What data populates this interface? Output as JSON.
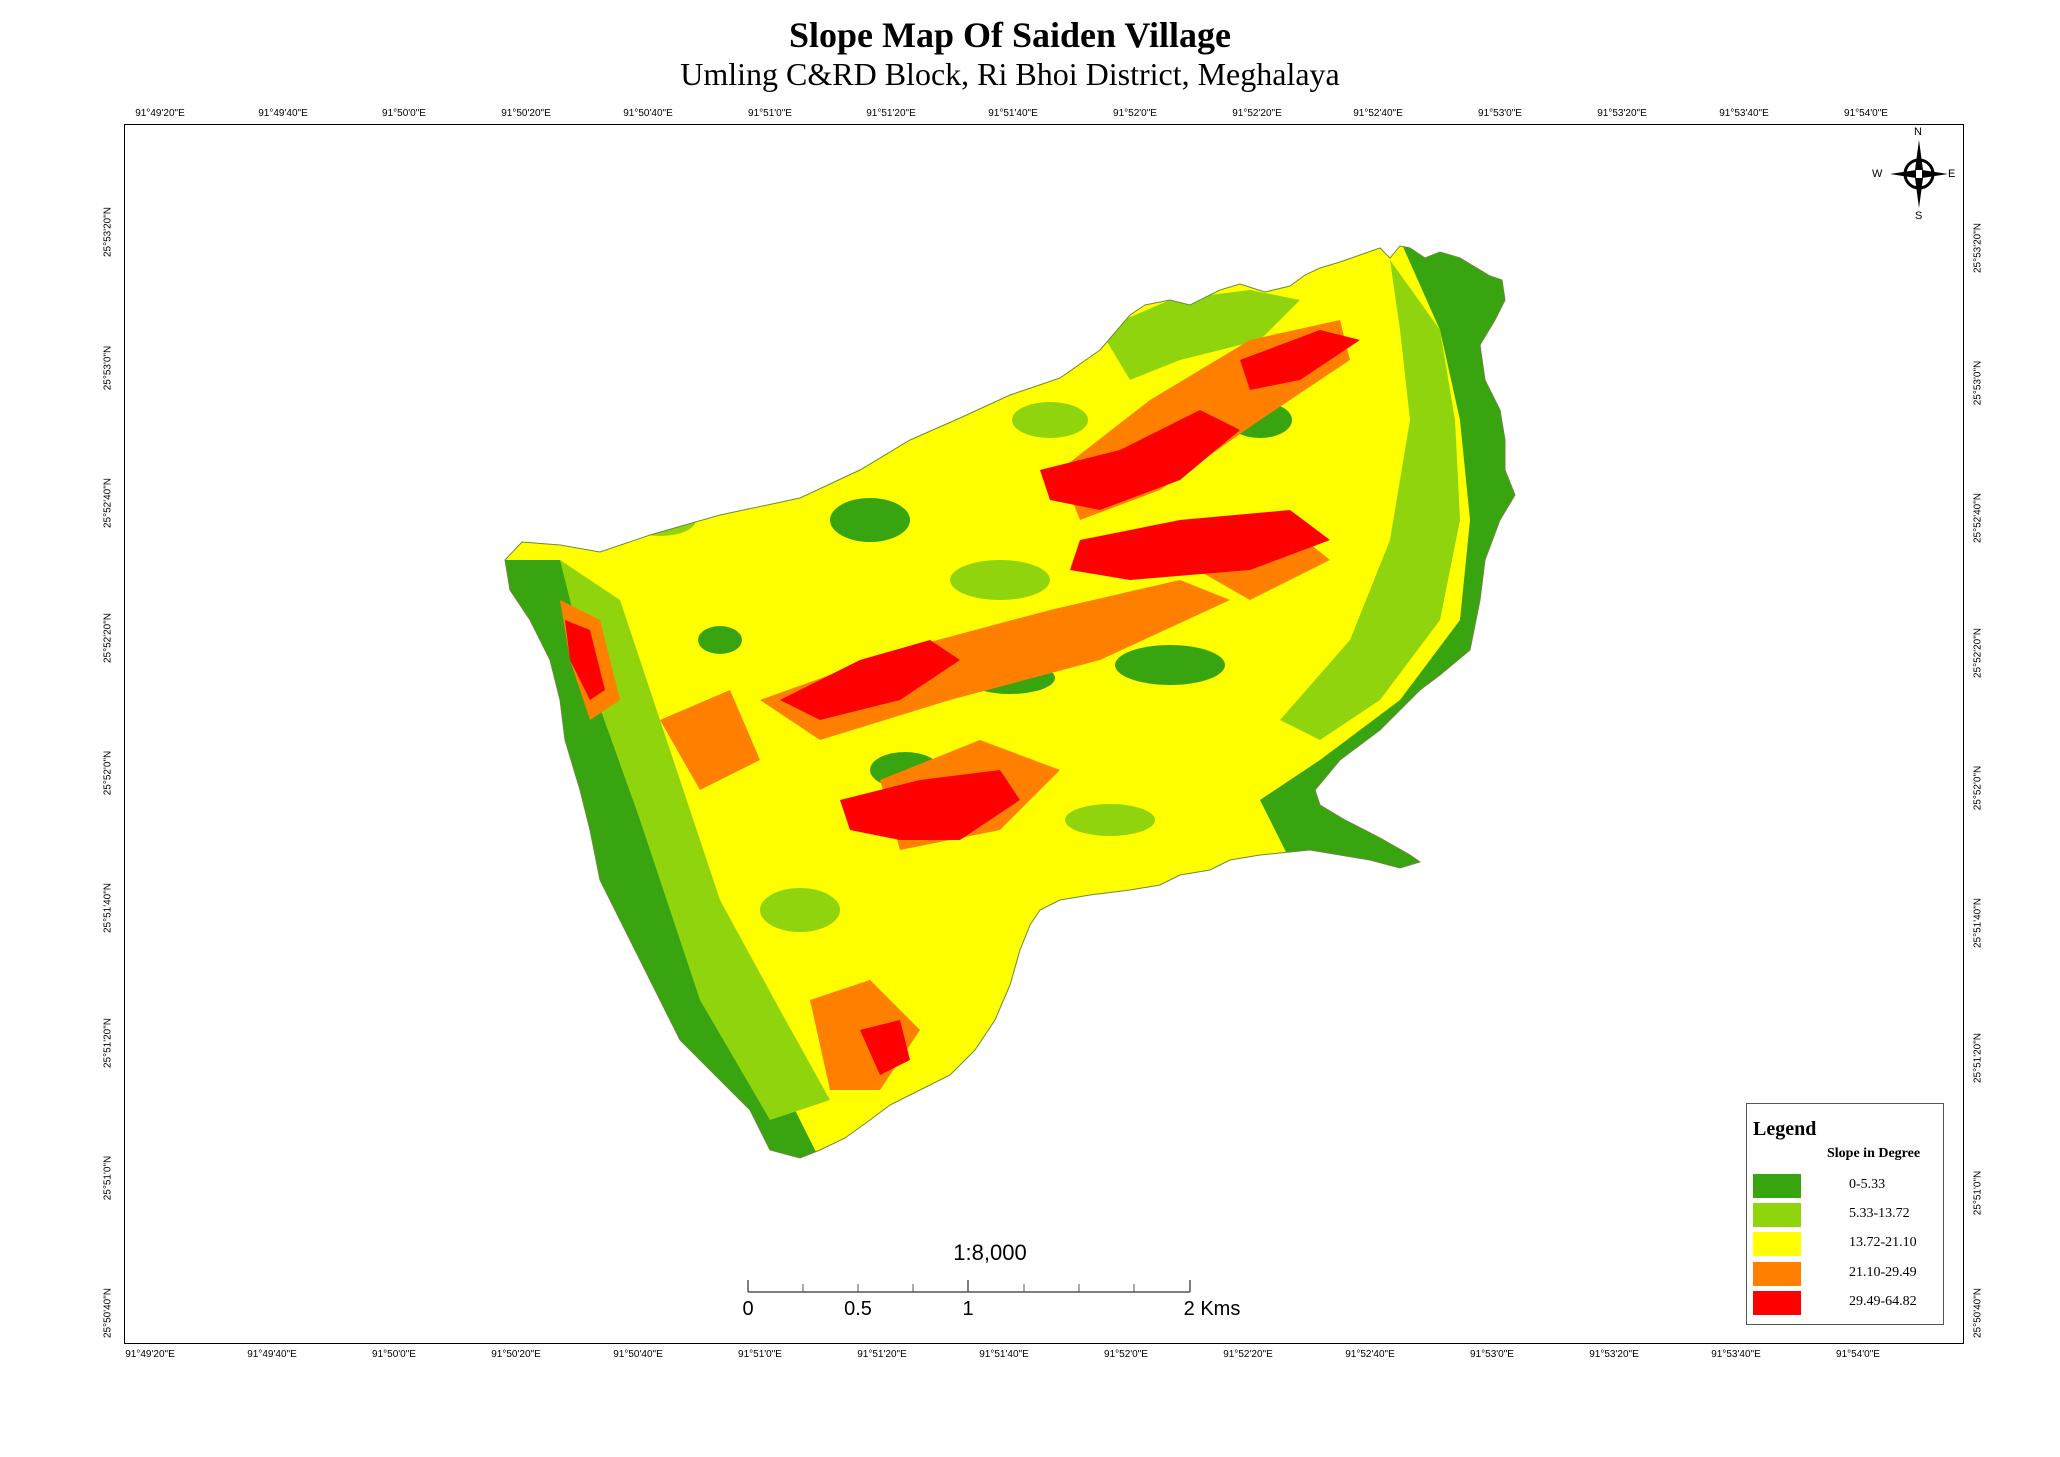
{
  "title": "Slope Map Of Saiden Village",
  "subtitle": "Umling C&RD Block, Ri Bhoi District, Meghalaya",
  "graticule": {
    "longitudes": [
      "91°49'20\"E",
      "91°49'40\"E",
      "91°50'0\"E",
      "91°50'20\"E",
      "91°50'40\"E",
      "91°51'0\"E",
      "91°51'20\"E",
      "91°51'40\"E",
      "91°52'0\"E",
      "91°52'20\"E",
      "91°52'40\"E",
      "91°53'0\"E",
      "91°53'20\"E",
      "91°53'40\"E",
      "91°54'0\"E"
    ],
    "latitudes": [
      "25°53'20\"N",
      "25°53'0\"N",
      "25°52'40\"N",
      "25°52'20\"N",
      "25°52'0\"N",
      "25°51'40\"N",
      "25°51'20\"N",
      "25°51'0\"N",
      "25°50'40\"N"
    ]
  },
  "compass": {
    "n": "N",
    "e": "E",
    "s": "S",
    "w": "W"
  },
  "scale_bar": {
    "ratio": "1:8,000",
    "labels": [
      "0",
      "0.5",
      "1",
      "2 Kms"
    ]
  },
  "legend": {
    "title": "Legend",
    "subtitle": "Slope in Degree",
    "classes": [
      {
        "label": "0-5.33",
        "color": "#38a40f"
      },
      {
        "label": "5.33-13.72",
        "color": "#8fd40c"
      },
      {
        "label": "13.72-21.10",
        "color": "#ffff00"
      },
      {
        "label": "21.10-29.49",
        "color": "#ff8000"
      },
      {
        "label": "29.49-64.82",
        "color": "#ff0000"
      }
    ]
  }
}
